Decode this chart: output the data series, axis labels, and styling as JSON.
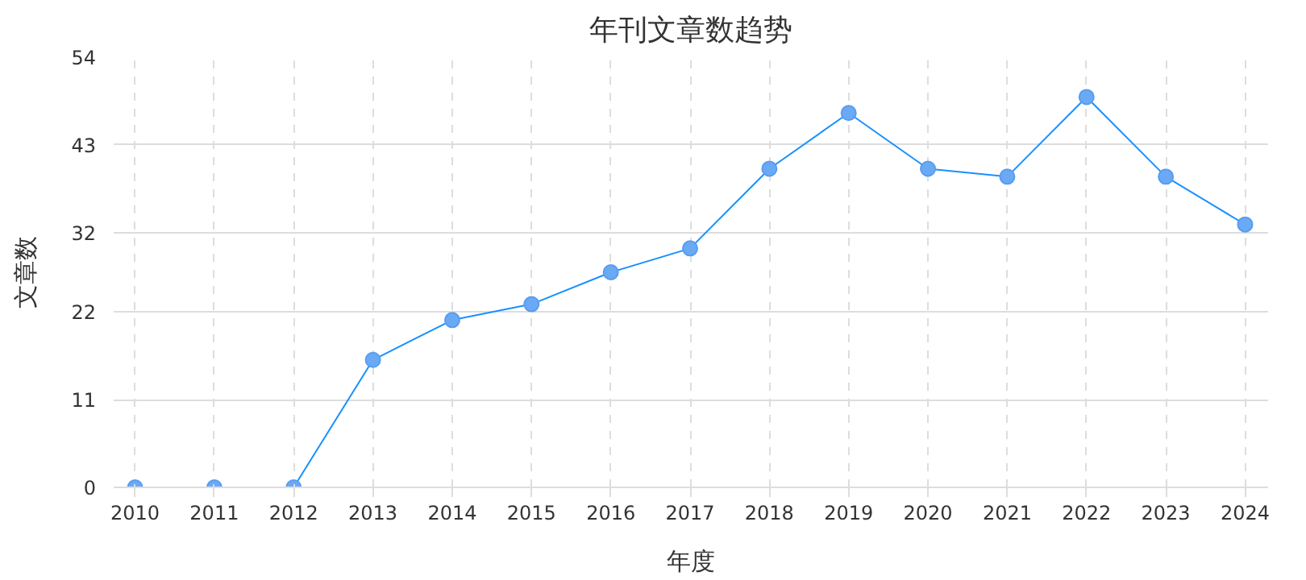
{
  "chart_data": {
    "type": "line",
    "title": "年刊文章数趋势",
    "xlabel": "年度",
    "ylabel": "文章数",
    "categories": [
      "2010",
      "2011",
      "2012",
      "2013",
      "2014",
      "2015",
      "2016",
      "2017",
      "2018",
      "2019",
      "2020",
      "2021",
      "2022",
      "2023",
      "2024"
    ],
    "series": [
      {
        "color": "#1890ff",
        "values": [
          0,
          0,
          0,
          16,
          21,
          23,
          27,
          30,
          40,
          47,
          40,
          39,
          49,
          39,
          33
        ]
      }
    ],
    "ylim": [
      0,
      54
    ],
    "yticks": [
      0,
      11,
      22,
      32,
      43,
      54
    ],
    "grid": true,
    "marker": "circle",
    "line_style": "solid"
  }
}
